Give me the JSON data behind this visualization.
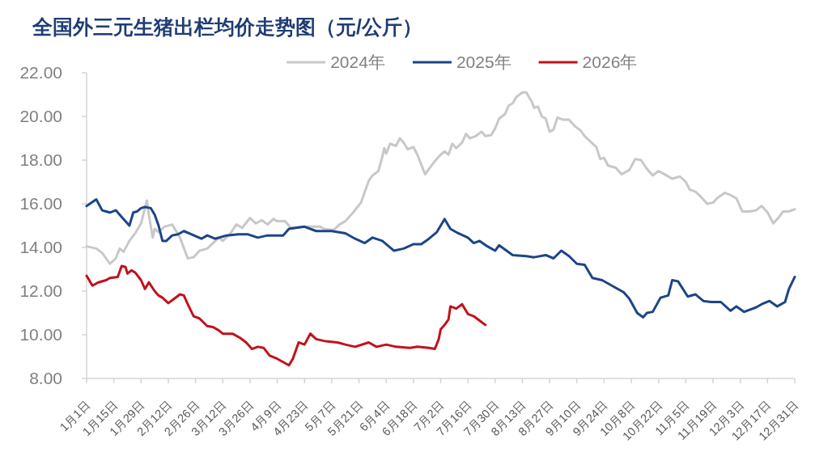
{
  "chart_data": {
    "type": "line",
    "title": "全国外三元生猪出栏均价走势图（元/公斤）",
    "xlim": [
      "--01-01",
      "--12-31"
    ],
    "xticks": [
      {
        "value": "--01-01",
        "label": "1月1日"
      },
      {
        "value": "--01-15",
        "label": "1月15日"
      },
      {
        "value": "--01-29",
        "label": "1月29日"
      },
      {
        "value": "--02-12",
        "label": "2月12日"
      },
      {
        "value": "--02-26",
        "label": "2月26日"
      },
      {
        "value": "--03-12",
        "label": "3月12日"
      },
      {
        "value": "--03-26",
        "label": "3月26日"
      },
      {
        "value": "--04-09",
        "label": "4月9日"
      },
      {
        "value": "--04-23",
        "label": "4月23日"
      },
      {
        "value": "--05-07",
        "label": "5月7日"
      },
      {
        "value": "--05-21",
        "label": "5月21日"
      },
      {
        "value": "--06-04",
        "label": "6月4日"
      },
      {
        "value": "--06-18",
        "label": "6月18日"
      },
      {
        "value": "--07-02",
        "label": "7月2日"
      },
      {
        "value": "--07-16",
        "label": "7月16日"
      },
      {
        "value": "--07-30",
        "label": "7月30日"
      },
      {
        "value": "--08-13",
        "label": "8月13日"
      },
      {
        "value": "--08-27",
        "label": "8月27日"
      },
      {
        "value": "--09-10",
        "label": "9月10日"
      },
      {
        "value": "--09-24",
        "label": "9月24日"
      },
      {
        "value": "--10-08",
        "label": "10月8日"
      },
      {
        "value": "--10-22",
        "label": "10月22日"
      },
      {
        "value": "--11-05",
        "label": "11月5日"
      },
      {
        "value": "--11-19",
        "label": "11月19日"
      },
      {
        "value": "--12-03",
        "label": "12月3日"
      },
      {
        "value": "--12-17",
        "label": "12月17日"
      },
      {
        "value": "--12-31",
        "label": "12月31日"
      }
    ],
    "ylim": [
      8,
      22
    ],
    "yticks": [
      {
        "value": 8,
        "label": "8.00"
      },
      {
        "value": 10,
        "label": "10.00"
      },
      {
        "value": 12,
        "label": "12.00"
      },
      {
        "value": 14,
        "label": "14.00"
      },
      {
        "value": 16,
        "label": "16.00"
      },
      {
        "value": 18,
        "label": "18.00"
      },
      {
        "value": 20,
        "label": "20.00"
      },
      {
        "value": 22,
        "label": "22.00"
      }
    ],
    "legend": "top",
    "series": [
      {
        "name": "2024年",
        "color": "#c8c8c8",
        "x": [
          "--01-01",
          "--01-06",
          "--01-09",
          "--01-13",
          "--01-16",
          "--01-18",
          "--01-20",
          "--01-23",
          "--01-26",
          "--01-29",
          "--02-01",
          "--02-02",
          "--02-04",
          "--02-05",
          "--02-07",
          "--02-10",
          "--02-14",
          "--02-18",
          "--02-22",
          "--02-25",
          "--02-28",
          "--03-04",
          "--03-07",
          "--03-10",
          "--03-12",
          "--03-16",
          "--03-19",
          "--03-22",
          "--03-26",
          "--03-29",
          "--04-01",
          "--04-04",
          "--04-07",
          "--04-09",
          "--04-13",
          "--04-16",
          "--04-24",
          "--05-01",
          "--05-03",
          "--05-08",
          "--05-11",
          "--05-14",
          "--05-18",
          "--05-22",
          "--05-24",
          "--05-26",
          "--05-28",
          "--05-31",
          "--06-02",
          "--06-03",
          "--06-04",
          "--06-06",
          "--06-09",
          "--06-11",
          "--06-13",
          "--06-15",
          "--06-18",
          "--06-20",
          "--06-22",
          "--06-24",
          "--06-26",
          "--06-29",
          "--07-02",
          "--07-04",
          "--07-06",
          "--07-08",
          "--07-10",
          "--07-13",
          "--07-15",
          "--07-17",
          "--07-20",
          "--07-23",
          "--07-25",
          "--07-28",
          "--07-30",
          "--08-01",
          "--08-04",
          "--08-06",
          "--08-08",
          "--08-10",
          "--08-13",
          "--08-15",
          "--08-18",
          "--08-19",
          "--08-21",
          "--08-23",
          "--08-25",
          "--08-27",
          "--08-29",
          "--08-31",
          "--09-03",
          "--09-06",
          "--09-09",
          "--09-12",
          "--09-14",
          "--09-17",
          "--09-20",
          "--09-22",
          "--09-24",
          "--09-26",
          "--09-30",
          "--10-03",
          "--10-07",
          "--10-10",
          "--10-13",
          "--10-16",
          "--10-19",
          "--10-22",
          "--10-26",
          "--10-29",
          "--11-02",
          "--11-05",
          "--11-07",
          "--11-10",
          "--11-13",
          "--11-16",
          "--11-19",
          "--11-21",
          "--11-25",
          "--11-28",
          "--12-01",
          "--12-04",
          "--12-08",
          "--12-11",
          "--12-14",
          "--12-17",
          "--12-20",
          "--12-23",
          "--12-25",
          "--12-28",
          "--12-31"
        ],
        "values": [
          14.05,
          13.95,
          13.75,
          13.25,
          13.5,
          13.95,
          13.8,
          14.3,
          14.65,
          15.1,
          16.15,
          15.5,
          14.45,
          14.85,
          14.7,
          14.95,
          15.05,
          14.45,
          13.5,
          13.55,
          13.85,
          13.95,
          14.2,
          14.45,
          14.3,
          14.65,
          15.05,
          14.9,
          15.35,
          15.1,
          15.25,
          15.05,
          15.3,
          15.2,
          15.2,
          14.9,
          14.95,
          14.95,
          14.85,
          14.8,
          15.05,
          15.2,
          15.6,
          16.05,
          16.55,
          17.05,
          17.3,
          17.5,
          18.15,
          18.55,
          18.3,
          18.75,
          18.65,
          19.0,
          18.8,
          18.5,
          18.6,
          18.25,
          17.8,
          17.35,
          17.6,
          17.95,
          18.25,
          18.4,
          18.25,
          18.75,
          18.55,
          18.8,
          19.2,
          19.0,
          19.1,
          19.3,
          19.1,
          19.15,
          19.45,
          19.9,
          20.1,
          20.5,
          20.6,
          20.9,
          21.1,
          21.1,
          20.65,
          20.4,
          20.45,
          20.0,
          19.9,
          19.3,
          19.4,
          19.95,
          19.85,
          19.85,
          19.55,
          19.35,
          19.1,
          18.85,
          18.6,
          18.05,
          18.1,
          17.75,
          17.65,
          17.35,
          17.55,
          18.05,
          18.0,
          17.6,
          17.3,
          17.5,
          17.3,
          17.15,
          17.25,
          17.0,
          16.65,
          16.55,
          16.3,
          16.0,
          16.05,
          16.25,
          16.5,
          16.4,
          16.25,
          15.65,
          15.65,
          15.7,
          15.9,
          15.6,
          15.1,
          15.4,
          15.65,
          15.65,
          15.75
        ]
      },
      {
        "name": "2025年",
        "color": "#1c4587",
        "x": [
          "--01-01",
          "--01-06",
          "--01-09",
          "--01-11",
          "--01-13",
          "--01-16",
          "--01-20",
          "--01-23",
          "--01-25",
          "--01-27",
          "--01-29",
          "--01-31",
          "--02-03",
          "--02-05",
          "--02-07",
          "--02-09",
          "--02-11",
          "--02-14",
          "--02-17",
          "--02-20",
          "--02-24",
          "--03-01",
          "--03-04",
          "--03-08",
          "--03-14",
          "--03-20",
          "--03-25",
          "--03-30",
          "--04-04",
          "--04-12",
          "--04-15",
          "--04-23",
          "--04-29",
          "--05-07",
          "--05-14",
          "--05-19",
          "--05-24",
          "--05-28",
          "--06-02",
          "--06-08",
          "--06-13",
          "--06-18",
          "--06-22",
          "--06-26",
          "--06-30",
          "--07-04",
          "--07-07",
          "--07-11",
          "--07-16",
          "--07-19",
          "--07-22",
          "--07-26",
          "--07-30",
          "--08-01",
          "--08-08",
          "--08-15",
          "--08-19",
          "--08-25",
          "--08-29",
          "--09-02",
          "--09-06",
          "--09-10",
          "--09-14",
          "--09-18",
          "--09-23",
          "--09-28",
          "--10-04",
          "--10-07",
          "--10-11",
          "--10-14",
          "--10-16",
          "--10-19",
          "--10-23",
          "--10-27",
          "--10-29",
          "--11-01",
          "--11-06",
          "--11-10",
          "--11-14",
          "--11-18",
          "--11-23",
          "--11-28",
          "--12-01",
          "--12-05",
          "--12-11",
          "--12-14",
          "--12-18",
          "--12-22",
          "--12-26",
          "--12-28",
          "--12-31"
        ],
        "values": [
          15.9,
          16.2,
          15.7,
          15.65,
          15.6,
          15.7,
          15.3,
          15.0,
          15.6,
          15.65,
          15.8,
          15.85,
          15.8,
          15.5,
          15.0,
          14.3,
          14.3,
          14.55,
          14.6,
          14.75,
          14.6,
          14.4,
          14.55,
          14.4,
          14.55,
          14.6,
          14.6,
          14.45,
          14.55,
          14.55,
          14.85,
          14.95,
          14.75,
          14.75,
          14.65,
          14.4,
          14.2,
          14.45,
          14.3,
          13.85,
          13.95,
          14.15,
          14.15,
          14.4,
          14.7,
          15.3,
          14.85,
          14.65,
          14.45,
          14.2,
          14.3,
          14.05,
          13.85,
          14.1,
          13.65,
          13.6,
          13.55,
          13.65,
          13.5,
          13.85,
          13.6,
          13.25,
          13.2,
          12.6,
          12.5,
          12.25,
          11.95,
          11.65,
          11.0,
          10.8,
          11.0,
          11.05,
          11.7,
          11.8,
          12.5,
          12.45,
          11.75,
          11.85,
          11.55,
          11.5,
          11.5,
          11.1,
          11.3,
          11.05,
          11.25,
          11.4,
          11.55,
          11.3,
          11.5,
          12.1,
          12.65
        ]
      },
      {
        "name": "2026年",
        "color": "#c0121b",
        "x": [
          "--01-01",
          "--01-04",
          "--01-07",
          "--01-11",
          "--01-13",
          "--01-17",
          "--01-19",
          "--01-21",
          "--01-22",
          "--01-24",
          "--01-26",
          "--01-29",
          "--01-31",
          "--02-02",
          "--02-05",
          "--02-07",
          "--02-09",
          "--02-12",
          "--02-15",
          "--02-18",
          "--02-20",
          "--02-22",
          "--02-25",
          "--02-28",
          "--03-04",
          "--03-07",
          "--03-10",
          "--03-12",
          "--03-17",
          "--03-21",
          "--03-24",
          "--03-27",
          "--03-30",
          "--04-02",
          "--04-05",
          "--04-09",
          "--04-12",
          "--04-15",
          "--04-17",
          "--04-20",
          "--04-23",
          "--04-26",
          "--04-29",
          "--05-04",
          "--05-10",
          "--05-14",
          "--05-19",
          "--05-26",
          "--05-30",
          "--06-04",
          "--06-09",
          "--06-16",
          "--06-20",
          "--06-26",
          "--06-29",
          "--07-01",
          "--07-02",
          "--07-04",
          "--07-06",
          "--07-07",
          "--07-10",
          "--07-13",
          "--07-16",
          "--07-19",
          "--07-22",
          "--07-25"
        ],
        "values": [
          12.7,
          12.25,
          12.4,
          12.5,
          12.6,
          12.65,
          13.15,
          13.1,
          12.8,
          12.95,
          12.85,
          12.5,
          12.1,
          12.4,
          12.0,
          11.8,
          11.7,
          11.45,
          11.65,
          11.85,
          11.8,
          11.4,
          10.85,
          10.75,
          10.4,
          10.35,
          10.2,
          10.05,
          10.05,
          9.85,
          9.65,
          9.35,
          9.45,
          9.4,
          9.05,
          8.9,
          8.75,
          8.6,
          8.9,
          9.65,
          9.55,
          10.05,
          9.8,
          9.7,
          9.65,
          9.55,
          9.45,
          9.65,
          9.45,
          9.55,
          9.45,
          9.4,
          9.45,
          9.4,
          9.35,
          9.8,
          10.25,
          10.45,
          10.7,
          11.3,
          11.2,
          11.4,
          10.95,
          10.85,
          10.65,
          10.45
        ]
      }
    ]
  }
}
